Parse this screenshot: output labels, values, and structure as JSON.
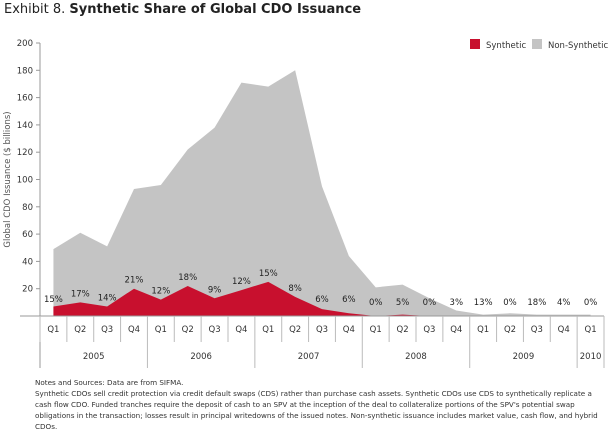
{
  "title": {
    "lead": "Exhibit 8.",
    "main": "Synthetic Share of Global CDO Issuance"
  },
  "chart_data": {
    "type": "area",
    "title": "Synthetic Share of Global CDO Issuance",
    "xlabel": "",
    "ylabel": "Global CDO Issuance ($ billions)",
    "ylim": [
      0,
      200
    ],
    "yticks": [
      20,
      40,
      60,
      80,
      100,
      120,
      140,
      160,
      180,
      200
    ],
    "grid": false,
    "legend_position": "top-right",
    "categories": [
      "Q1",
      "Q2",
      "Q3",
      "Q4",
      "Q1",
      "Q2",
      "Q3",
      "Q4",
      "Q1",
      "Q2",
      "Q3",
      "Q4",
      "Q1",
      "Q2",
      "Q3",
      "Q4",
      "Q1",
      "Q2",
      "Q3",
      "Q4",
      "Q1"
    ],
    "years": [
      {
        "label": "2005",
        "quarters": 4
      },
      {
        "label": "2006",
        "quarters": 4
      },
      {
        "label": "2007",
        "quarters": 4
      },
      {
        "label": "2008",
        "quarters": 4
      },
      {
        "label": "2009",
        "quarters": 4
      },
      {
        "label": "2010",
        "quarters": 1
      }
    ],
    "series": [
      {
        "name": "Non-Synthetic",
        "color": "#c4c4c4",
        "stacked_total": [
          49,
          61,
          51,
          93,
          96,
          122,
          138,
          171,
          168,
          180,
          95,
          44,
          21,
          23,
          13,
          4,
          1,
          2,
          1,
          1,
          1
        ]
      },
      {
        "name": "Synthetic",
        "color": "#c8102e",
        "values": [
          7,
          10,
          7,
          20,
          12,
          22,
          13,
          19,
          25,
          14,
          5,
          2,
          0,
          1,
          0,
          0,
          0,
          0,
          0,
          0,
          0
        ]
      }
    ],
    "annotations": [
      "15%",
      "17%",
      "14%",
      "21%",
      "12%",
      "18%",
      "9%",
      "12%",
      "15%",
      "8%",
      "6%",
      "6%",
      "0%",
      "5%",
      "0%",
      "3%",
      "13%",
      "0%",
      "18%",
      "4%",
      "0%"
    ]
  },
  "notes": {
    "source_label": "Notes and Sources:",
    "source_text": "Data are from SIFMA.",
    "body": "Synthetic CDOs sell credit protection via credit default swaps (CDS) rather than purchase cash assets. Synthetic CDOs use CDS to synthetically replicate a cash flow CDO. Funded tranches require the deposit of cash to an SPV at the inception of the deal to collateralize portions of the SPV's potential swap obligations in the transaction; losses result in principal writedowns of the issued notes. Non-synthetic issuance includes market value, cash flow, and hybrid CDOs."
  }
}
